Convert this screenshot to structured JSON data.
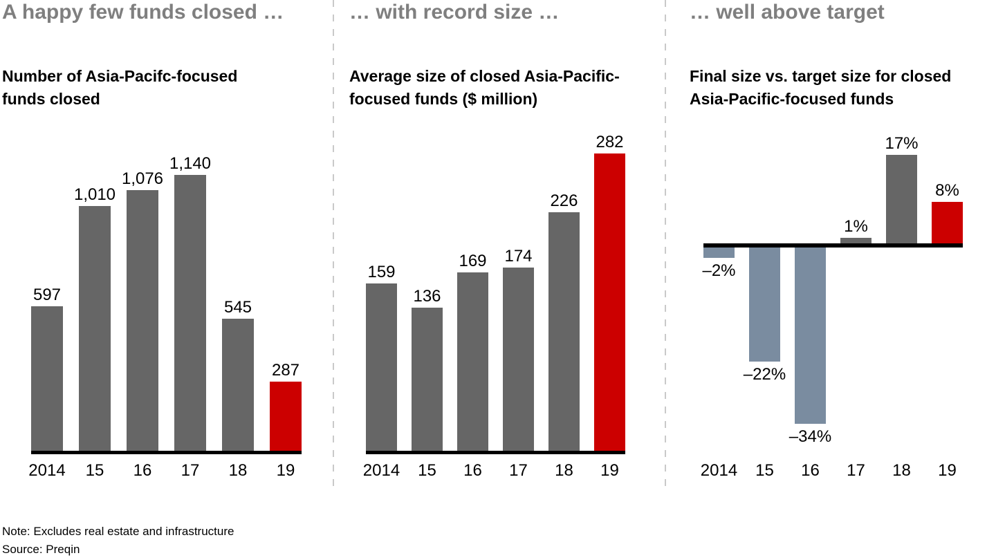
{
  "colors": {
    "panel_title": "#7f7f7f",
    "text": "#000000",
    "bar_gray": "#666666",
    "bar_red": "#cc0000",
    "bar_negative_slate": "#7a8ca0",
    "axis_line": "#000000",
    "divider": "#c9c9c9"
  },
  "footer": {
    "note": "Note: Excludes real estate and infrastructure",
    "source": "Source: Preqin"
  },
  "chart_data": [
    {
      "type": "bar",
      "panel_title": "A happy few funds closed …",
      "title": "Number of Asia-Pacifc-focused funds closed",
      "title_lines": [
        "Number of Asia-Pacifc-focused",
        "funds closed"
      ],
      "categories": [
        "2014",
        "15",
        "16",
        "17",
        "18",
        "19"
      ],
      "values": [
        597,
        1010,
        1076,
        1140,
        545,
        287
      ],
      "value_labels": [
        "597",
        "1,010",
        "1,076",
        "1,140",
        "545",
        "287"
      ],
      "highlight_index": 5,
      "ylim": [
        0,
        1140
      ],
      "grid": false,
      "legend": false
    },
    {
      "type": "bar",
      "panel_title": "… with record size …",
      "title": "Average size of closed Asia-Pacific-focused funds ($ million)",
      "title_lines": [
        "Average size of closed Asia-Pacific-",
        "focused funds ($ million)"
      ],
      "categories": [
        "2014",
        "15",
        "16",
        "17",
        "18",
        "19"
      ],
      "values": [
        159,
        136,
        169,
        174,
        226,
        282
      ],
      "value_labels": [
        "159",
        "136",
        "169",
        "174",
        "226",
        "282"
      ],
      "highlight_index": 5,
      "ylim": [
        0,
        282
      ],
      "grid": false,
      "legend": false
    },
    {
      "type": "bar",
      "panel_title": "… well above target",
      "title": "Final size vs. target size for closed Asia-Pacific-focused funds",
      "title_lines": [
        "Final size vs. target size for closed",
        "Asia-Pacific-focused funds"
      ],
      "categories": [
        "2014",
        "15",
        "16",
        "17",
        "18",
        "19"
      ],
      "values": [
        -2,
        -22,
        -34,
        1,
        17,
        8
      ],
      "value_labels": [
        "–2%",
        "–22%",
        "–34%",
        "1%",
        "17%",
        "8%"
      ],
      "highlight_index": 5,
      "ylim": [
        -34,
        17
      ],
      "grid": false,
      "legend": false
    }
  ]
}
